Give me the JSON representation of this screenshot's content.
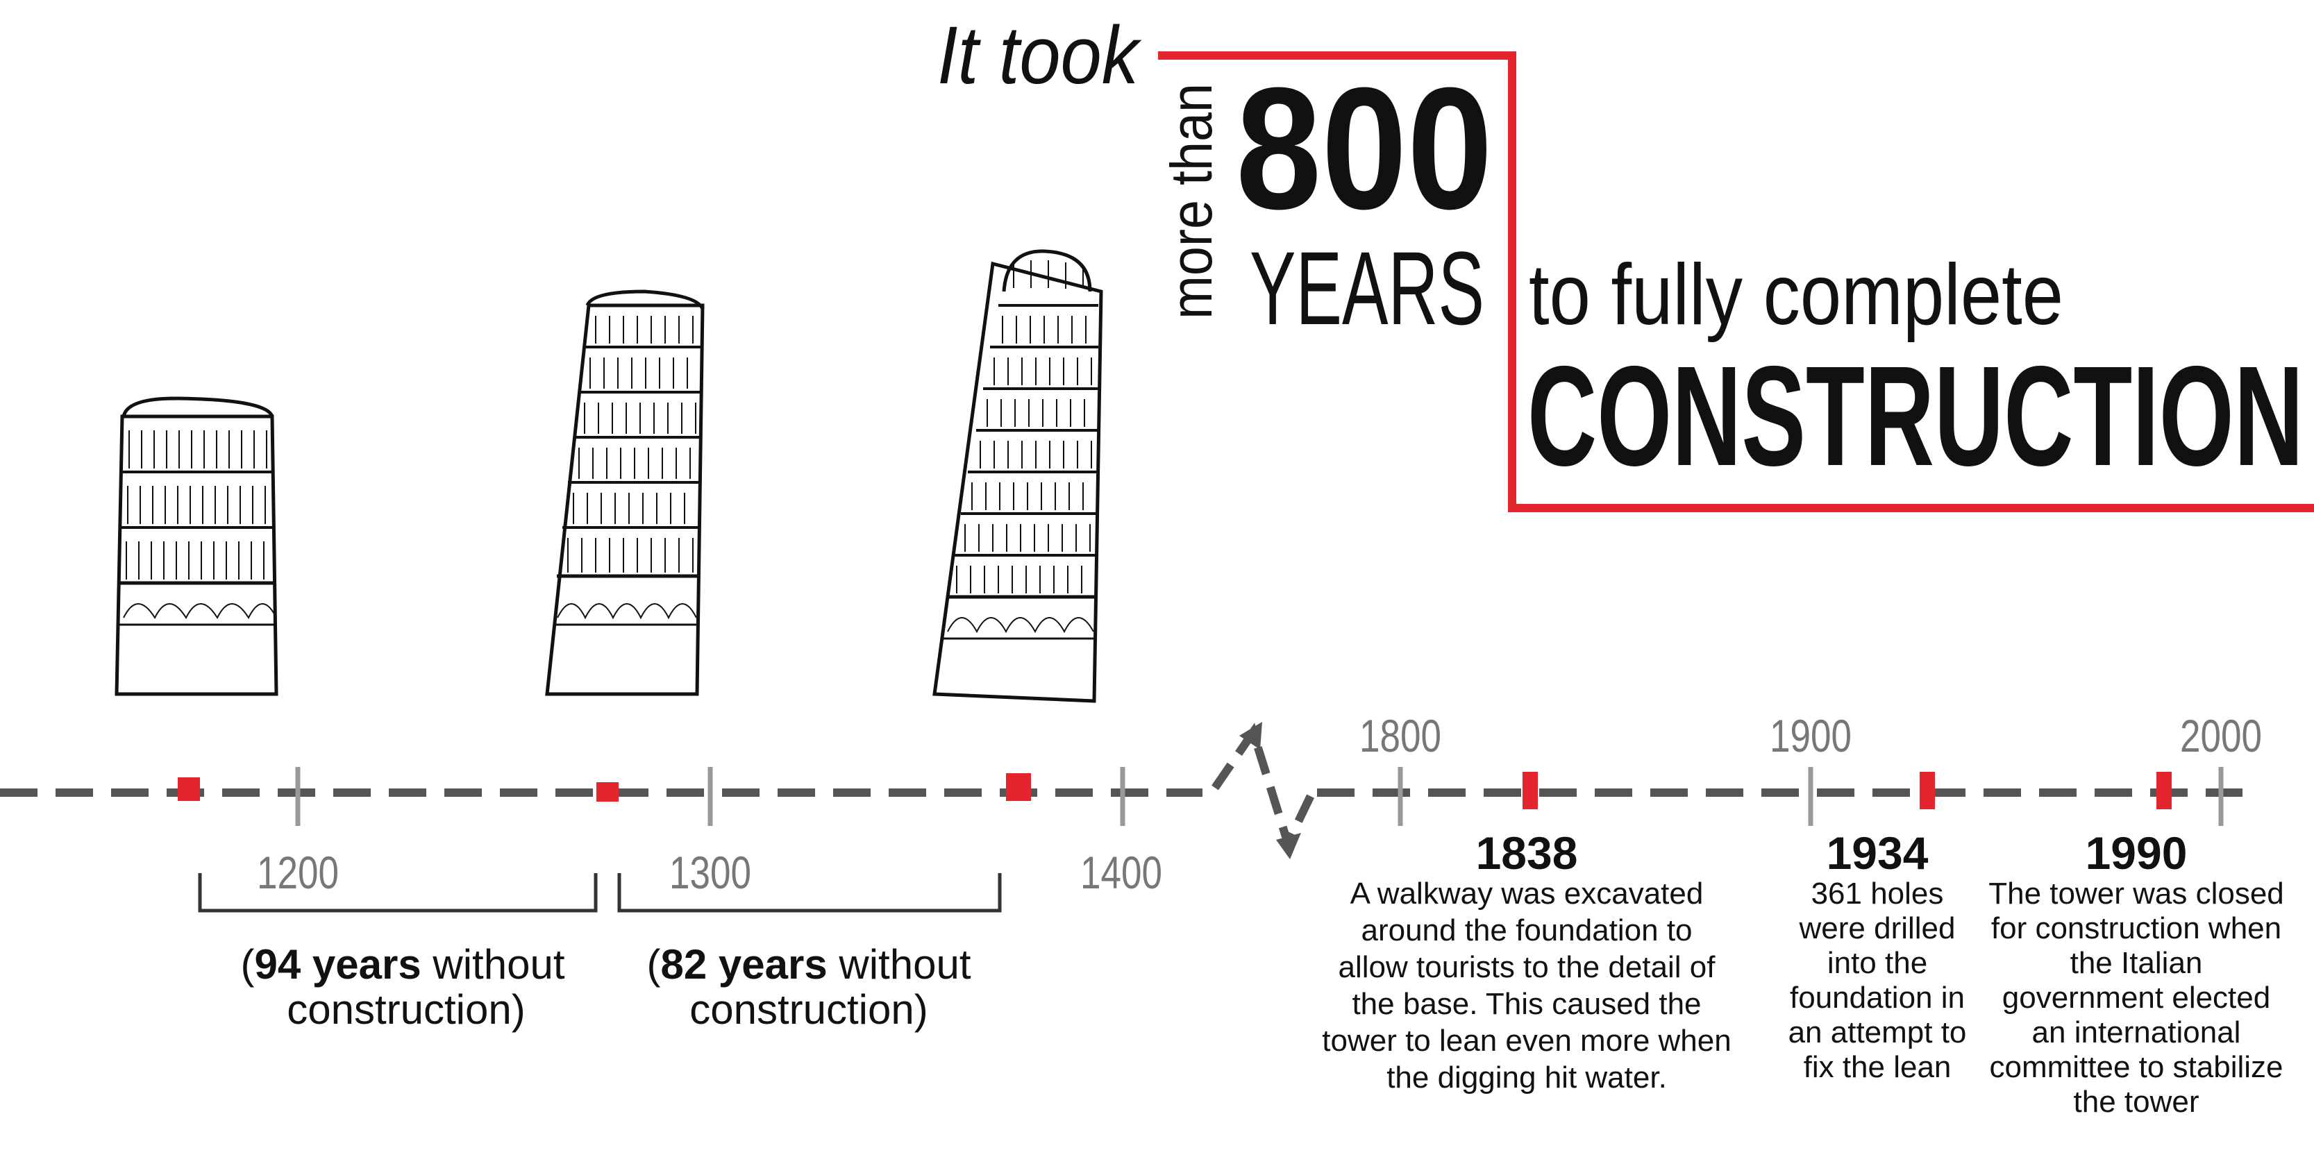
{
  "headline": {
    "it_took": "It took",
    "more_than": "more than",
    "number": "800",
    "years": "YEARS",
    "to_fully_complete": "to fully complete",
    "construction": "CONSTRUCTION",
    "accent_color": "#e3262e"
  },
  "timeline": {
    "line_color": "#555555",
    "tick_color": "#999999",
    "marker_color": "#e3262e",
    "ticks_left": [
      {
        "label": "1200"
      },
      {
        "label": "1300"
      },
      {
        "label": "1400"
      }
    ],
    "ticks_right": [
      {
        "label": "1800"
      },
      {
        "label": "1900"
      },
      {
        "label": "2000"
      }
    ],
    "gaps": [
      {
        "years_bold": "94 years",
        "rest": " without",
        "line2": "construction)"
      },
      {
        "years_bold": "82 years",
        "rest": " without",
        "line2": "construction)"
      }
    ],
    "events": [
      {
        "year": "1838",
        "lines": [
          "A walkway was excavated",
          "around the foundation to",
          "allow tourists to the detail of",
          "the base. This caused the",
          "tower to lean even more when",
          "the digging hit water."
        ]
      },
      {
        "year": "1934",
        "lines": [
          "361 holes",
          "were drilled",
          "into the",
          "foundation in",
          "an attempt to",
          "fix the lean"
        ]
      },
      {
        "year": "1990",
        "lines": [
          "The tower was closed",
          "for construction when",
          "the Italian",
          "government elected",
          "an international",
          "committee to stabilize",
          "the tower"
        ]
      }
    ]
  },
  "towers": [
    {
      "name": "tower-stage-1",
      "tiers": 3
    },
    {
      "name": "tower-stage-2",
      "tiers": 6
    },
    {
      "name": "tower-stage-3",
      "tiers": 7
    }
  ]
}
